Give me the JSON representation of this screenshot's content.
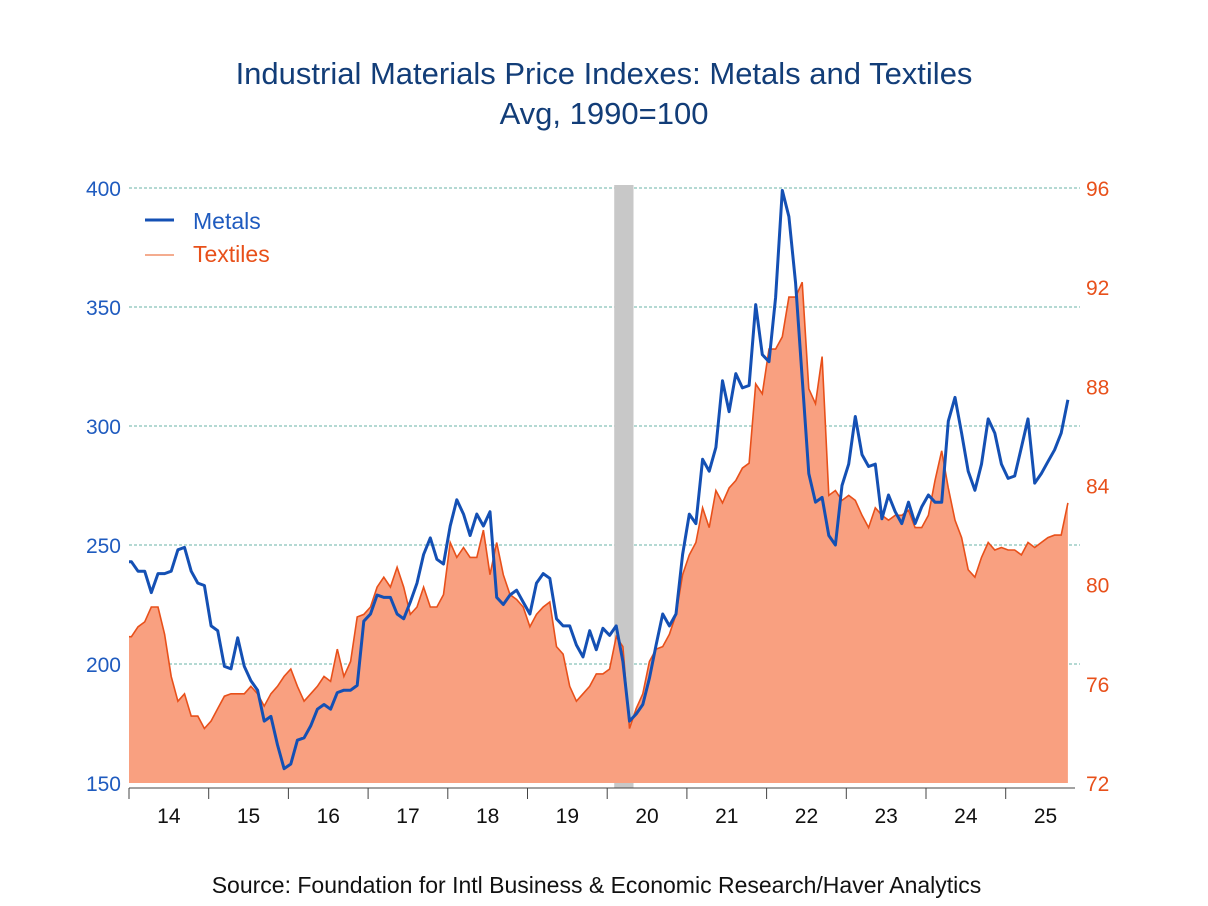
{
  "chart_data": {
    "type": "line",
    "title": "Industrial Materials Price Indexes: Metals and Textiles",
    "subtitle": "Avg, 1990=100",
    "source": "Source:  Foundation for Intl Business & Economic Research/Haver Analytics",
    "x_tick_labels": [
      "14",
      "15",
      "16",
      "17",
      "18",
      "19",
      "20",
      "21",
      "22",
      "23",
      "24",
      "25"
    ],
    "y_left": {
      "range": [
        150,
        400
      ],
      "ticks": [
        "150",
        "200",
        "250",
        "300",
        "350",
        "400"
      ],
      "color": "#1f5bbf"
    },
    "y_right": {
      "range": [
        72,
        96
      ],
      "ticks": [
        "72",
        "76",
        "80",
        "84",
        "88",
        "92",
        "96"
      ],
      "color": "#e8501a"
    },
    "grid": "horizontal dashed",
    "legend_position": "top-left",
    "recession_shading": {
      "from": "2020-02",
      "to": "2020-04",
      "color": "#c8c8c8"
    },
    "dates": [
      "2014-01",
      "2014-02",
      "2014-03",
      "2014-04",
      "2014-05",
      "2014-06",
      "2014-07",
      "2014-08",
      "2014-09",
      "2014-10",
      "2014-11",
      "2014-12",
      "2015-01",
      "2015-02",
      "2015-03",
      "2015-04",
      "2015-05",
      "2015-06",
      "2015-07",
      "2015-08",
      "2015-09",
      "2015-10",
      "2015-11",
      "2015-12",
      "2016-01",
      "2016-02",
      "2016-03",
      "2016-04",
      "2016-05",
      "2016-06",
      "2016-07",
      "2016-08",
      "2016-09",
      "2016-10",
      "2016-11",
      "2016-12",
      "2017-01",
      "2017-02",
      "2017-03",
      "2017-04",
      "2017-05",
      "2017-06",
      "2017-07",
      "2017-08",
      "2017-09",
      "2017-10",
      "2017-11",
      "2017-12",
      "2018-01",
      "2018-02",
      "2018-03",
      "2018-04",
      "2018-05",
      "2018-06",
      "2018-07",
      "2018-08",
      "2018-09",
      "2018-10",
      "2018-11",
      "2018-12",
      "2019-01",
      "2019-02",
      "2019-03",
      "2019-04",
      "2019-05",
      "2019-06",
      "2019-07",
      "2019-08",
      "2019-09",
      "2019-10",
      "2019-11",
      "2019-12",
      "2020-01",
      "2020-02",
      "2020-03",
      "2020-04",
      "2020-05",
      "2020-06",
      "2020-07",
      "2020-08",
      "2020-09",
      "2020-10",
      "2020-11",
      "2020-12",
      "2021-01",
      "2021-02",
      "2021-03",
      "2021-04",
      "2021-05",
      "2021-06",
      "2021-07",
      "2021-08",
      "2021-09",
      "2021-10",
      "2021-11",
      "2021-12",
      "2022-01",
      "2022-02",
      "2022-03",
      "2022-04",
      "2022-05",
      "2022-06",
      "2022-07",
      "2022-08",
      "2022-09",
      "2022-10",
      "2022-11",
      "2022-12",
      "2023-01",
      "2023-02",
      "2023-03",
      "2023-04",
      "2023-05",
      "2023-06",
      "2023-07",
      "2023-08",
      "2023-09",
      "2023-10",
      "2023-11",
      "2023-12",
      "2024-01",
      "2024-02",
      "2024-03",
      "2024-04",
      "2024-05",
      "2024-06",
      "2024-07",
      "2024-08",
      "2024-09",
      "2024-10",
      "2024-11",
      "2024-12",
      "2025-01",
      "2025-02",
      "2025-03",
      "2025-04",
      "2025-05",
      "2025-06",
      "2025-07",
      "2025-08",
      "2025-09",
      "2025-10"
    ],
    "series": [
      {
        "name": "Metals",
        "axis": "left",
        "style": "line",
        "color": "#1450b4",
        "values": [
          243,
          239,
          239,
          230,
          238,
          238,
          239,
          248,
          249,
          239,
          234,
          233,
          216,
          214,
          199,
          198,
          211,
          199,
          193,
          189,
          176,
          178,
          166,
          156,
          158,
          168,
          169,
          174,
          181,
          183,
          181,
          188,
          189,
          189,
          191,
          218,
          221,
          229,
          228,
          228,
          221,
          219,
          226,
          234,
          246,
          253,
          244,
          242,
          258,
          269,
          263,
          254,
          263,
          258,
          264,
          228,
          225,
          229,
          231,
          226,
          221,
          234,
          238,
          236,
          219,
          216,
          216,
          208,
          203,
          214,
          206,
          215,
          212,
          216,
          201,
          176,
          179,
          183,
          194,
          208,
          221,
          216,
          221,
          246,
          263,
          259,
          286,
          281,
          291,
          319,
          306,
          322,
          316,
          317,
          351,
          330,
          327,
          354,
          399,
          388,
          360,
          320,
          280,
          268,
          270,
          254,
          250,
          275,
          284,
          304,
          288,
          283,
          284,
          261,
          271,
          264,
          259,
          268,
          259,
          266,
          271,
          268,
          268,
          302,
          312,
          297,
          281,
          273,
          284,
          303,
          297,
          284,
          278,
          279,
          291,
          303,
          276,
          280,
          285,
          290,
          297,
          311
        ]
      },
      {
        "name": "Textiles",
        "axis": "right",
        "style": "area",
        "color": "#e8501a",
        "fill": "#f9a080",
        "values": [
          77.9,
          78.3,
          78.5,
          79.1,
          79.1,
          78.0,
          76.3,
          75.3,
          75.6,
          74.7,
          74.7,
          74.2,
          74.5,
          75.0,
          75.5,
          75.6,
          75.6,
          75.6,
          75.9,
          75.6,
          75.1,
          75.6,
          75.9,
          76.3,
          76.6,
          75.9,
          75.3,
          75.6,
          75.9,
          76.3,
          76.1,
          77.4,
          76.3,
          76.9,
          78.7,
          78.8,
          79.1,
          79.9,
          80.3,
          79.9,
          80.7,
          79.9,
          78.8,
          79.1,
          79.9,
          79.1,
          79.1,
          79.6,
          81.7,
          81.1,
          81.5,
          81.1,
          81.1,
          82.2,
          80.4,
          81.7,
          80.4,
          79.6,
          79.4,
          79.1,
          78.3,
          78.8,
          79.1,
          79.3,
          77.5,
          77.2,
          75.9,
          75.3,
          75.6,
          75.9,
          76.4,
          76.4,
          76.6,
          77.9,
          77.5,
          74.2,
          75.0,
          75.6,
          76.9,
          77.4,
          77.5,
          78.0,
          78.8,
          80.4,
          81.2,
          81.7,
          83.1,
          82.3,
          83.8,
          83.3,
          83.9,
          84.2,
          84.7,
          84.9,
          88.1,
          87.7,
          89.5,
          89.5,
          90.0,
          91.6,
          91.6,
          92.2,
          87.9,
          87.3,
          89.2,
          83.6,
          83.8,
          83.4,
          83.6,
          83.4,
          82.8,
          82.3,
          83.1,
          82.8,
          82.6,
          82.8,
          82.8,
          83.0,
          82.3,
          82.3,
          82.8,
          84.2,
          85.4,
          83.9,
          82.6,
          81.9,
          80.6,
          80.3,
          81.1,
          81.7,
          81.4,
          81.5,
          81.4,
          81.4,
          81.2,
          81.7,
          81.5,
          81.7,
          81.9,
          82.0,
          82.0,
          83.3
        ]
      }
    ]
  }
}
